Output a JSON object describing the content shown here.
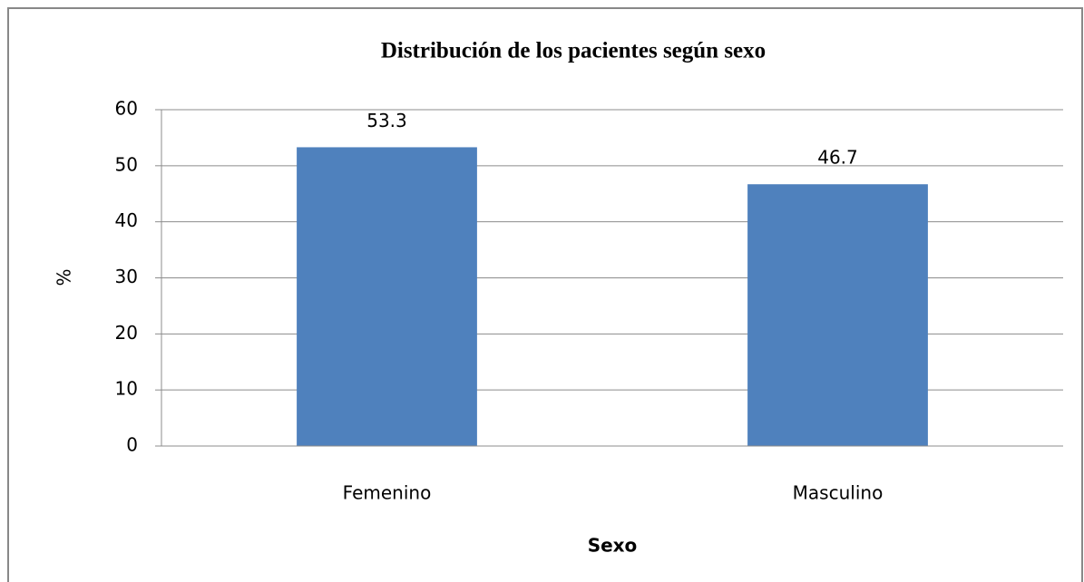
{
  "chart_data": {
    "type": "bar",
    "title": "Distribución de los pacientes según sexo",
    "x_label": "Sexo",
    "y_label": "%",
    "categories": [
      "Femenino",
      "Masculino"
    ],
    "values": [
      53.3,
      46.7
    ],
    "color": "#4f81bd",
    "ylim": [
      0,
      60
    ],
    "yticks": [
      0,
      10,
      20,
      30,
      40,
      50,
      60
    ],
    "grid": true
  }
}
